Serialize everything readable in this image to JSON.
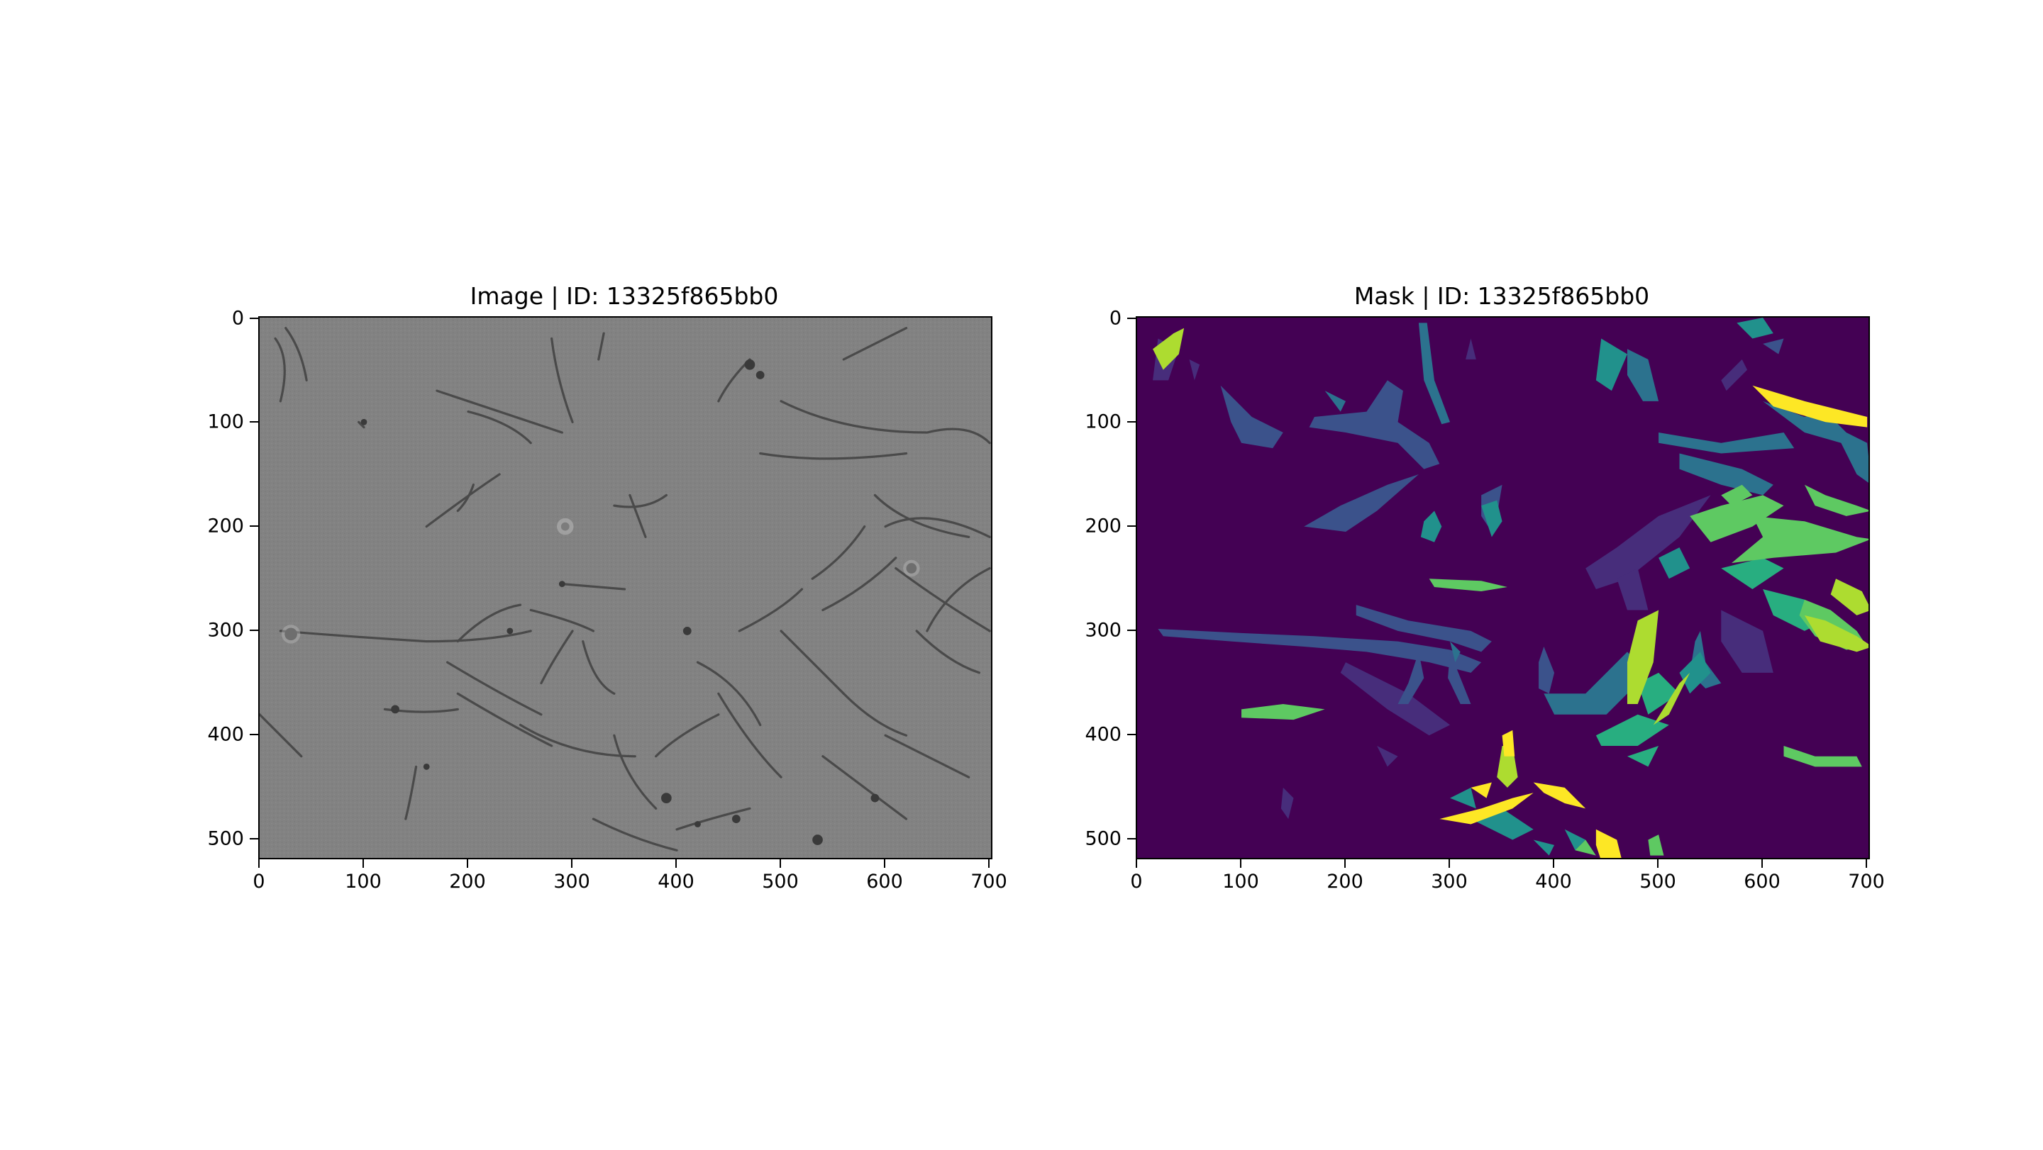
{
  "figure": {
    "panels": [
      {
        "title": "Image | ID: 13325f865bb0",
        "kind": "grayscale microscopy image",
        "x_ticks": [
          "0",
          "100",
          "200",
          "300",
          "400",
          "500",
          "600",
          "700"
        ],
        "y_ticks": [
          "0",
          "100",
          "200",
          "300",
          "400",
          "500"
        ],
        "x_range": [
          0,
          704
        ],
        "y_range": [
          0,
          520
        ]
      },
      {
        "title": "Mask | ID: 13325f865bb0",
        "kind": "segmentation mask (viridis)",
        "x_ticks": [
          "0",
          "100",
          "200",
          "300",
          "400",
          "500",
          "600",
          "700"
        ],
        "y_ticks": [
          "0",
          "100",
          "200",
          "300",
          "400",
          "500"
        ],
        "x_range": [
          0,
          704
        ],
        "y_range": [
          0,
          520
        ]
      }
    ],
    "colors": {
      "image_background": "#808080",
      "mask_background": "#440154",
      "viridis": [
        "#472d7b",
        "#3b528b",
        "#2c728e",
        "#21918c",
        "#28ae80",
        "#5ec962",
        "#addc30",
        "#fde725"
      ]
    }
  }
}
